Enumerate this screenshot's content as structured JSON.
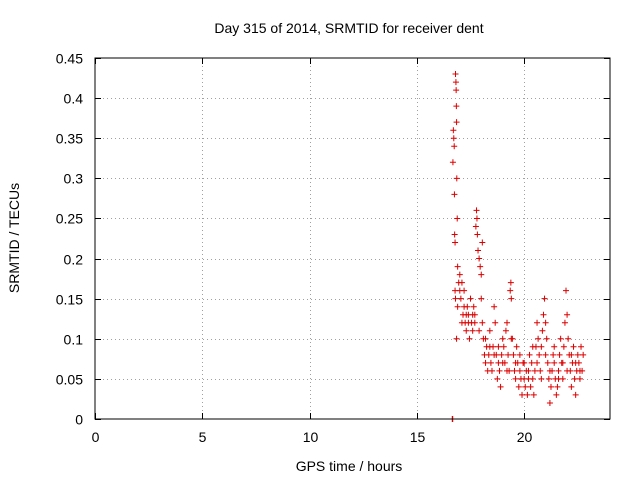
{
  "chart_data": {
    "type": "scatter",
    "title": "Day 315 of 2014, SRMTID for receiver dent",
    "xlabel": "GPS time / hours",
    "ylabel": "SRMTID / TECUs",
    "xlim": [
      0,
      24
    ],
    "ylim": [
      0,
      0.45
    ],
    "xticks": [
      0,
      5,
      10,
      15,
      20
    ],
    "xtick_labels": [
      "0",
      "5",
      "10",
      "15",
      "20"
    ],
    "yticks": [
      0,
      0.05,
      0.1,
      0.15,
      0.2,
      0.25,
      0.3,
      0.35,
      0.4,
      0.45
    ],
    "ytick_labels": [
      "0",
      "0.05",
      "0.1",
      "0.15",
      "0.2",
      "0.25",
      "0.3",
      "0.35",
      "0.4",
      "0.45"
    ],
    "grid": true,
    "marker": "+",
    "color": "#dd0000",
    "series": [
      {
        "name": "SRMTID",
        "points": [
          [
            16.65,
            0.0
          ],
          [
            16.66,
            0.0
          ],
          [
            16.67,
            0.0
          ],
          [
            16.68,
            0.32
          ],
          [
            16.7,
            0.36
          ],
          [
            16.72,
            0.35
          ],
          [
            16.74,
            0.34
          ],
          [
            16.75,
            0.28
          ],
          [
            16.76,
            0.23
          ],
          [
            16.78,
            0.22
          ],
          [
            16.8,
            0.43
          ],
          [
            16.82,
            0.42
          ],
          [
            16.83,
            0.41
          ],
          [
            16.84,
            0.39
          ],
          [
            16.85,
            0.37
          ],
          [
            16.86,
            0.3
          ],
          [
            16.88,
            0.25
          ],
          [
            16.9,
            0.19
          ],
          [
            16.78,
            0.16
          ],
          [
            16.8,
            0.15
          ],
          [
            16.85,
            0.1
          ],
          [
            16.9,
            0.14
          ],
          [
            16.95,
            0.17
          ],
          [
            17.0,
            0.18
          ],
          [
            17.05,
            0.15
          ],
          [
            17.1,
            0.12
          ],
          [
            17.15,
            0.13
          ],
          [
            17.2,
            0.16
          ],
          [
            17.25,
            0.12
          ],
          [
            17.3,
            0.11
          ],
          [
            17.35,
            0.14
          ],
          [
            17.4,
            0.13
          ],
          [
            17.45,
            0.1
          ],
          [
            17.5,
            0.15
          ],
          [
            17.55,
            0.12
          ],
          [
            17.6,
            0.11
          ],
          [
            17.65,
            0.14
          ],
          [
            17.7,
            0.13
          ],
          [
            17.75,
            0.24
          ],
          [
            17.78,
            0.26
          ],
          [
            17.8,
            0.25
          ],
          [
            17.82,
            0.23
          ],
          [
            17.85,
            0.21
          ],
          [
            17.9,
            0.2
          ],
          [
            17.95,
            0.19
          ],
          [
            18.0,
            0.18
          ],
          [
            18.05,
            0.22
          ],
          [
            18.0,
            0.15
          ],
          [
            18.05,
            0.12
          ],
          [
            18.1,
            0.1
          ],
          [
            18.15,
            0.08
          ],
          [
            18.2,
            0.07
          ],
          [
            18.25,
            0.09
          ],
          [
            18.3,
            0.06
          ],
          [
            18.35,
            0.08
          ],
          [
            18.4,
            0.11
          ],
          [
            18.45,
            0.07
          ],
          [
            18.5,
            0.06
          ],
          [
            18.55,
            0.09
          ],
          [
            18.6,
            0.14
          ],
          [
            18.65,
            0.12
          ],
          [
            18.7,
            0.08
          ],
          [
            18.75,
            0.05
          ],
          [
            18.8,
            0.07
          ],
          [
            18.85,
            0.06
          ],
          [
            18.9,
            0.04
          ],
          [
            18.95,
            0.08
          ],
          [
            19.0,
            0.1
          ],
          [
            19.05,
            0.09
          ],
          [
            19.1,
            0.07
          ],
          [
            19.15,
            0.11
          ],
          [
            19.2,
            0.12
          ],
          [
            19.25,
            0.08
          ],
          [
            19.3,
            0.06
          ],
          [
            19.35,
            0.16
          ],
          [
            19.38,
            0.17
          ],
          [
            19.4,
            0.15
          ],
          [
            19.45,
            0.1
          ],
          [
            19.5,
            0.08
          ],
          [
            19.55,
            0.06
          ],
          [
            19.6,
            0.05
          ],
          [
            19.65,
            0.09
          ],
          [
            19.7,
            0.07
          ],
          [
            19.75,
            0.04
          ],
          [
            19.8,
            0.06
          ],
          [
            19.85,
            0.05
          ],
          [
            19.9,
            0.03
          ],
          [
            19.95,
            0.07
          ],
          [
            20.0,
            0.05
          ],
          [
            20.05,
            0.04
          ],
          [
            20.1,
            0.06
          ],
          [
            20.15,
            0.03
          ],
          [
            20.2,
            0.05
          ],
          [
            20.25,
            0.08
          ],
          [
            20.3,
            0.04
          ],
          [
            20.35,
            0.07
          ],
          [
            20.4,
            0.05
          ],
          [
            20.45,
            0.03
          ],
          [
            20.5,
            0.06
          ],
          [
            20.55,
            0.09
          ],
          [
            20.6,
            0.12
          ],
          [
            20.65,
            0.1
          ],
          [
            20.7,
            0.08
          ],
          [
            20.75,
            0.06
          ],
          [
            20.8,
            0.09
          ],
          [
            20.85,
            0.11
          ],
          [
            20.9,
            0.13
          ],
          [
            20.95,
            0.15
          ],
          [
            21.0,
            0.12
          ],
          [
            21.05,
            0.1
          ],
          [
            21.1,
            0.07
          ],
          [
            21.15,
            0.05
          ],
          [
            21.2,
            0.02
          ],
          [
            21.25,
            0.04
          ],
          [
            21.3,
            0.06
          ],
          [
            21.35,
            0.08
          ],
          [
            21.4,
            0.09
          ],
          [
            21.45,
            0.05
          ],
          [
            21.5,
            0.03
          ],
          [
            21.55,
            0.04
          ],
          [
            21.6,
            0.06
          ],
          [
            21.65,
            0.08
          ],
          [
            21.7,
            0.1
          ],
          [
            21.75,
            0.07
          ],
          [
            21.8,
            0.05
          ],
          [
            21.85,
            0.09
          ],
          [
            21.9,
            0.12
          ],
          [
            21.95,
            0.16
          ],
          [
            22.0,
            0.13
          ],
          [
            22.05,
            0.1
          ],
          [
            22.1,
            0.08
          ],
          [
            22.15,
            0.06
          ],
          [
            22.2,
            0.04
          ],
          [
            22.25,
            0.07
          ],
          [
            22.3,
            0.09
          ],
          [
            22.35,
            0.05
          ],
          [
            22.4,
            0.03
          ],
          [
            22.45,
            0.06
          ],
          [
            22.5,
            0.08
          ],
          [
            22.55,
            0.07
          ],
          [
            22.6,
            0.05
          ],
          [
            22.65,
            0.09
          ],
          [
            22.7,
            0.06
          ],
          [
            22.75,
            0.08
          ],
          [
            17.0,
            0.16
          ],
          [
            17.1,
            0.17
          ],
          [
            17.2,
            0.14
          ],
          [
            17.3,
            0.13
          ],
          [
            17.4,
            0.12
          ],
          [
            17.6,
            0.13
          ],
          [
            17.7,
            0.12
          ],
          [
            17.9,
            0.11
          ],
          [
            18.2,
            0.1
          ],
          [
            18.4,
            0.09
          ],
          [
            18.6,
            0.08
          ],
          [
            18.8,
            0.09
          ],
          [
            19.0,
            0.07
          ],
          [
            19.2,
            0.06
          ],
          [
            19.4,
            0.1
          ],
          [
            19.6,
            0.07
          ],
          [
            19.8,
            0.08
          ],
          [
            20.0,
            0.07
          ],
          [
            20.2,
            0.06
          ],
          [
            20.4,
            0.09
          ],
          [
            20.6,
            0.07
          ],
          [
            20.8,
            0.05
          ],
          [
            21.0,
            0.08
          ],
          [
            21.2,
            0.06
          ],
          [
            21.4,
            0.07
          ],
          [
            21.6,
            0.05
          ],
          [
            21.8,
            0.07
          ],
          [
            22.0,
            0.06
          ],
          [
            22.2,
            0.08
          ],
          [
            22.4,
            0.07
          ],
          [
            22.6,
            0.06
          ]
        ]
      }
    ]
  }
}
